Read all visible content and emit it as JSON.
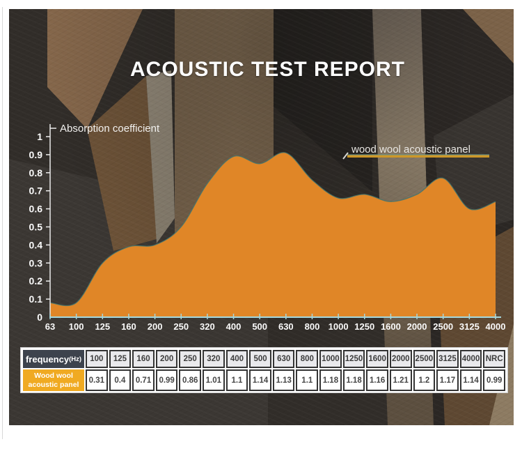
{
  "page": {
    "title": "ACOUSTIC TEST REPORT"
  },
  "chart_data": {
    "type": "area",
    "title": "Absorption coefficient",
    "legend": [
      "wood wool acoustic panel"
    ],
    "legend_position": "top-right",
    "grid": false,
    "x_categories": [
      "63",
      "100",
      "125",
      "160",
      "200",
      "250",
      "320",
      "400",
      "500",
      "630",
      "800",
      "1000",
      "1250",
      "1600",
      "2000",
      "2500",
      "3125",
      "4000"
    ],
    "plotted_values": [
      0.08,
      0.08,
      0.3,
      0.39,
      0.4,
      0.5,
      0.74,
      0.89,
      0.85,
      0.91,
      0.76,
      0.66,
      0.68,
      0.64,
      0.68,
      0.77,
      0.6,
      0.64
    ],
    "ylim": [
      0,
      1
    ],
    "ytick_labels": [
      "0",
      "0.1",
      "0.2",
      "0.3",
      "0.4",
      "0.5",
      "0.6",
      "0.7",
      "0.8",
      "0.9",
      "1"
    ],
    "series_color": "#e08627"
  },
  "table": {
    "corner": {
      "label": "frequency",
      "unit": "(Hz)"
    },
    "columns": [
      "100",
      "125",
      "160",
      "200",
      "250",
      "320",
      "400",
      "500",
      "630",
      "800",
      "1000",
      "1250",
      "1600",
      "2000",
      "2500",
      "3125",
      "4000",
      "NRC"
    ],
    "rows": [
      {
        "label_line1": "Wood wool",
        "label_line2": "acoustic panel",
        "values": [
          "0.31",
          "0.4",
          "0.71",
          "0.99",
          "0.86",
          "1.01",
          "1.1",
          "1.14",
          "1.13",
          "1.1",
          "1.18",
          "1.18",
          "1.16",
          "1.21",
          "1.2",
          "1.17",
          "1.14",
          "0.99"
        ]
      }
    ]
  },
  "colors": {
    "area_fill": "#e08627",
    "area_edge": "#3c7470",
    "x_axis": "#a6d8de",
    "y_axis": "#ececec",
    "label_text": "#fafafa",
    "legend_bar": "#cc9729",
    "table_header_bg": "#e9e9ec",
    "table_corner_bg": "#3d434d",
    "table_rowlabel_bg": "#f0aa22",
    "cell_border": "#343434"
  }
}
